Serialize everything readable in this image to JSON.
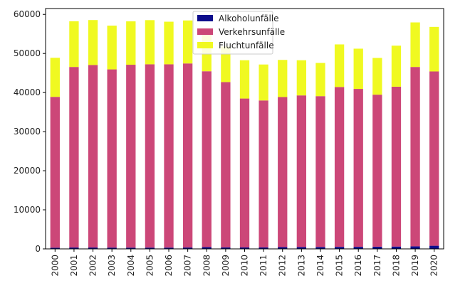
{
  "chart_data": {
    "type": "bar",
    "stacked": true,
    "categories": [
      "2000",
      "2001",
      "2002",
      "2003",
      "2004",
      "2005",
      "2006",
      "2007",
      "2008",
      "2009",
      "2010",
      "2011",
      "2012",
      "2013",
      "2014",
      "2015",
      "2016",
      "2017",
      "2018",
      "2019",
      "2020"
    ],
    "series": [
      {
        "name": "Alkoholunfälle",
        "color": "#0d0d8c",
        "values": [
          300,
          350,
          350,
          330,
          320,
          330,
          330,
          350,
          450,
          380,
          370,
          380,
          450,
          470,
          480,
          520,
          530,
          560,
          600,
          650,
          800
        ]
      },
      {
        "name": "Verkehrsunfälle",
        "color": "#cc4778",
        "values": [
          38600,
          46200,
          46700,
          45600,
          46800,
          46900,
          46900,
          47100,
          45000,
          42300,
          38100,
          37600,
          38400,
          38800,
          38600,
          40900,
          40400,
          38900,
          40900,
          45900,
          44600
        ]
      },
      {
        "name": "Fluchtunfälle",
        "color": "#f0f921",
        "values": [
          10000,
          11700,
          11500,
          11200,
          11100,
          11300,
          10900,
          11000,
          10200,
          9100,
          9800,
          9200,
          9500,
          9000,
          8500,
          10900,
          10300,
          9400,
          10500,
          11400,
          11400
        ]
      }
    ],
    "ylim": [
      0,
      61500
    ],
    "yticks": [
      0,
      10000,
      20000,
      30000,
      40000,
      50000,
      60000
    ],
    "title": "",
    "xlabel": "",
    "ylabel": "",
    "legend_position": "top-center",
    "grid": false
  }
}
